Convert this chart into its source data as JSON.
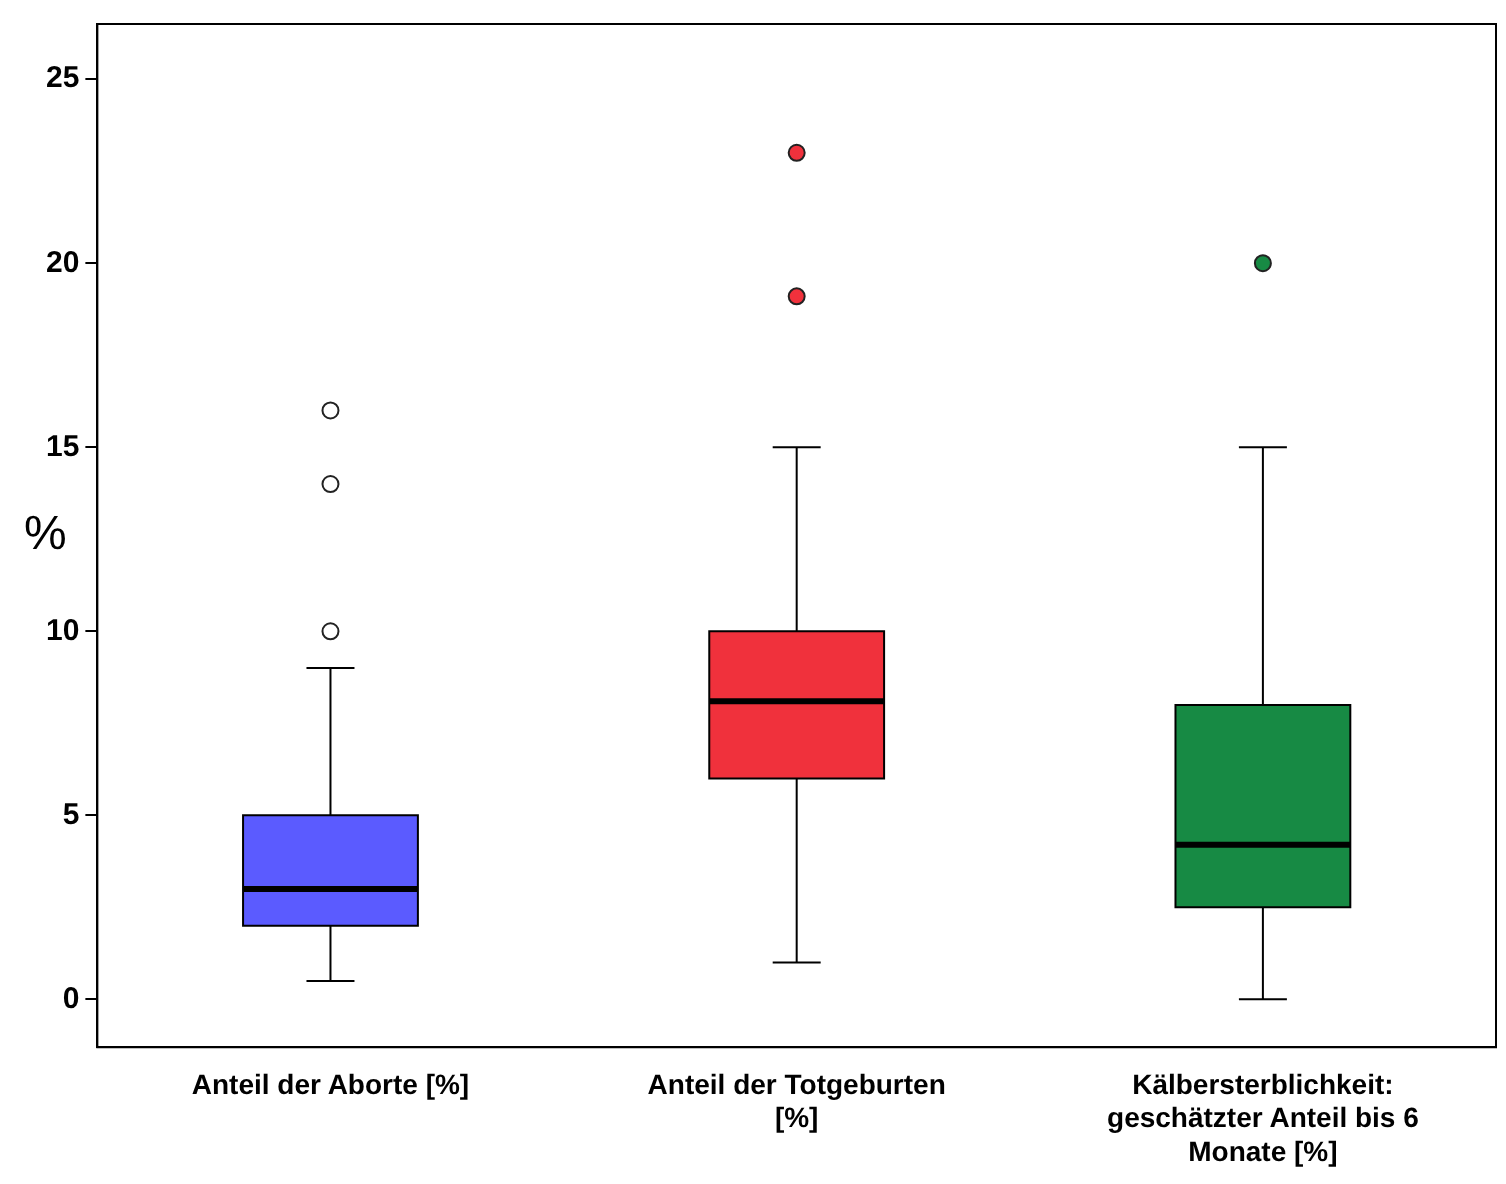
{
  "chart_data": {
    "type": "box",
    "ylabel": "%",
    "categories": [
      "Anteil der Aborte [%]",
      "Anteil der Totgeburten [%]",
      "Kälbersterblichkeit: geschätzter Anteil bis 6 Monate [%]"
    ],
    "colors": [
      "#5b5bff",
      "#f0313c",
      "#178a44"
    ],
    "boxes": [
      {
        "low": 0.5,
        "q1": 2,
        "median": 3,
        "q3": 5,
        "high": 9,
        "outliers": [
          10,
          14,
          16
        ]
      },
      {
        "low": 1,
        "q1": 6,
        "median": 8.1,
        "q3": 10,
        "high": 15,
        "outliers": [
          19.1,
          23
        ]
      },
      {
        "low": 0,
        "q1": 2.5,
        "median": 4.2,
        "q3": 8,
        "high": 15,
        "outliers": [
          20
        ]
      }
    ],
    "ylim": [
      -1.3,
      26.5
    ],
    "yticks": [
      0,
      5,
      10,
      15,
      20,
      25
    ],
    "grid": false,
    "legend": false
  }
}
